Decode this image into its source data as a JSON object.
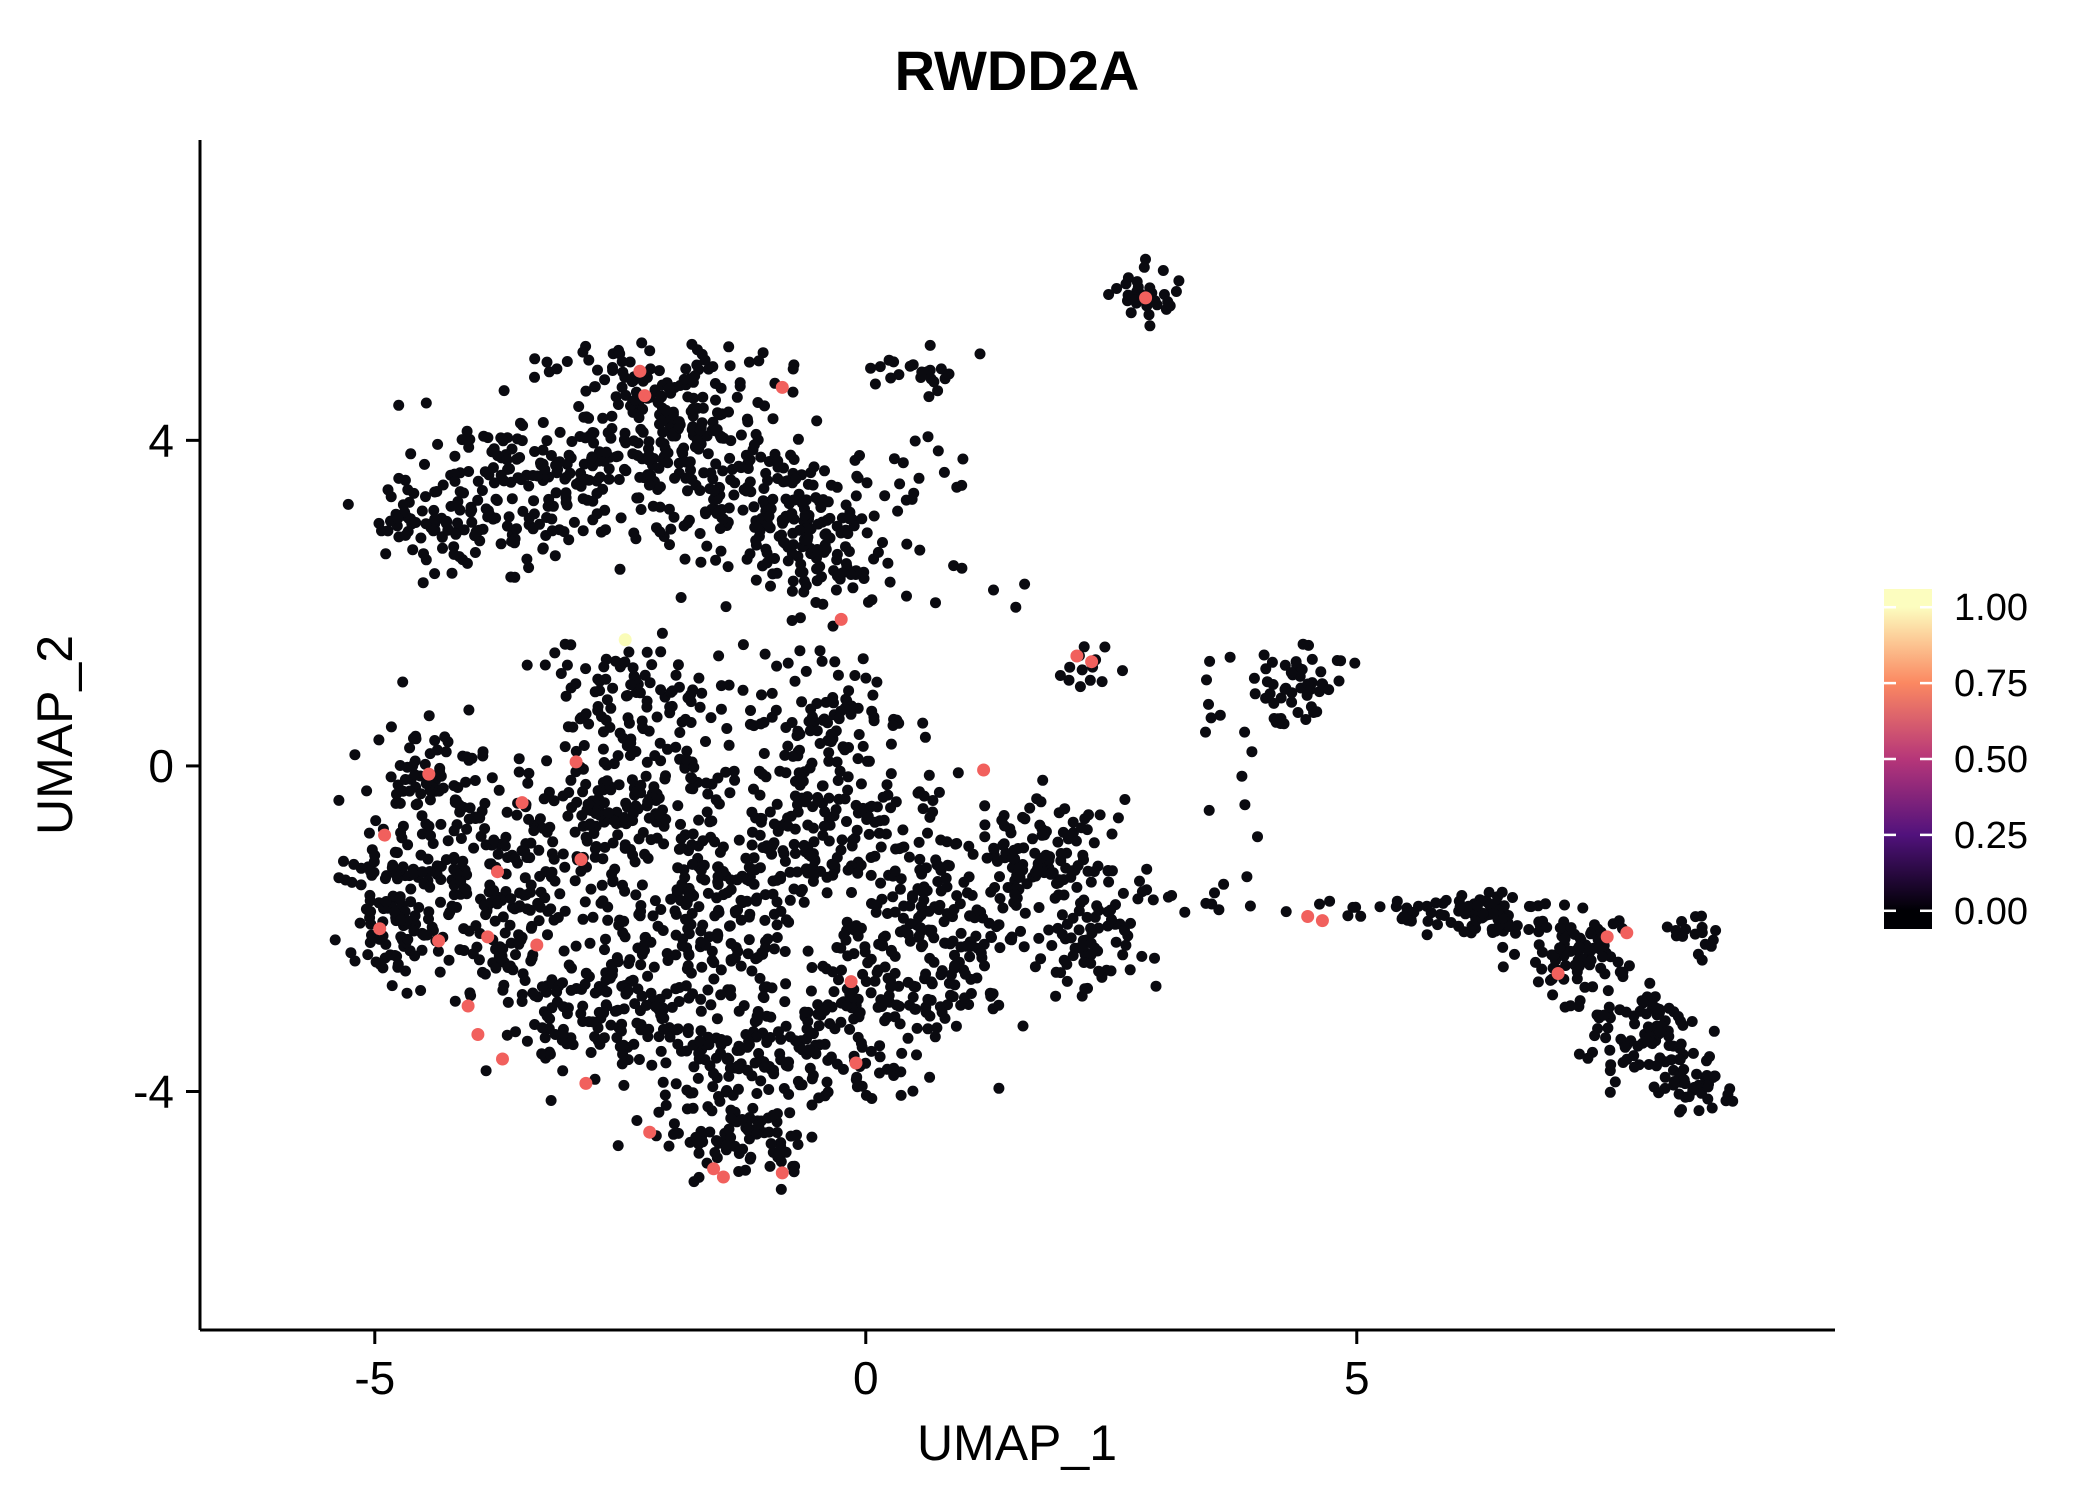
{
  "chart_data": {
    "type": "scatter",
    "title": "RWDD2A",
    "xlabel": "UMAP_1",
    "ylabel": "UMAP_2",
    "xlim": [
      -6.78,
      9.87
    ],
    "ylim": [
      -6.93,
      7.69
    ],
    "x_ticks": [
      -5,
      0,
      5
    ],
    "y_ticks": [
      -4,
      0,
      4
    ],
    "grid": false,
    "legend_position": "right",
    "point_color": "#0a0a10",
    "highlight_color": "#f1605d",
    "point_radius": 5.5,
    "highlight_radius": 6.5,
    "colorbar": {
      "tick_labels": [
        "1.00",
        "0.75",
        "0.50",
        "0.25",
        "0.00"
      ],
      "tick_values": [
        1.0,
        0.75,
        0.5,
        0.25,
        0.0
      ],
      "stops": [
        {
          "v": 0.0,
          "color": "#000004"
        },
        {
          "v": 0.25,
          "color": "#51127c"
        },
        {
          "v": 0.5,
          "color": "#b63679"
        },
        {
          "v": 0.75,
          "color": "#fb8861"
        },
        {
          "v": 1.0,
          "color": "#fcfdbf"
        }
      ]
    },
    "clusters": [
      {
        "cx": -3.4,
        "cy": 3.4,
        "rx": 1.25,
        "ry": 0.85,
        "n": 190,
        "seed": 1
      },
      {
        "cx": -2.0,
        "cy": 4.15,
        "rx": 1.0,
        "ry": 0.7,
        "n": 170,
        "seed": 2
      },
      {
        "cx": -1.2,
        "cy": 3.2,
        "rx": 0.95,
        "ry": 0.8,
        "n": 150,
        "seed": 3
      },
      {
        "cx": -0.35,
        "cy": 2.7,
        "rx": 0.6,
        "ry": 0.9,
        "n": 90,
        "seed": 4
      },
      {
        "cx": -4.35,
        "cy": 2.95,
        "rx": 0.7,
        "ry": 0.5,
        "n": 60,
        "seed": 5
      },
      {
        "cx": -2.2,
        "cy": 4.9,
        "rx": 1.0,
        "ry": 0.3,
        "n": 45,
        "seed": 6
      },
      {
        "cx": 0.5,
        "cy": 4.85,
        "rx": 0.55,
        "ry": 0.3,
        "n": 22,
        "seed": 7
      },
      {
        "cx": 0.6,
        "cy": 3.7,
        "rx": 0.5,
        "ry": 0.5,
        "n": 16,
        "seed": 8
      },
      {
        "cx": 1.2,
        "cy": 2.2,
        "rx": 0.4,
        "ry": 0.4,
        "n": 6,
        "seed": 9
      },
      {
        "cx": 2.85,
        "cy": 5.8,
        "rx": 0.3,
        "ry": 0.28,
        "n": 30,
        "seed": 10
      },
      {
        "cx": 2.25,
        "cy": 1.25,
        "rx": 0.33,
        "ry": 0.28,
        "n": 13,
        "seed": 11
      },
      {
        "cx": 4.4,
        "cy": 1.0,
        "rx": 0.52,
        "ry": 0.5,
        "n": 55,
        "seed": 12
      },
      {
        "cx": 3.5,
        "cy": 1.1,
        "rx": 0.35,
        "ry": 0.45,
        "n": 6,
        "seed": 13
      },
      {
        "cx": 3.9,
        "cy": -0.2,
        "rx": 0.5,
        "ry": 0.7,
        "n": 7,
        "seed": 14
      },
      {
        "cx": -3.9,
        "cy": -1.5,
        "rx": 1.2,
        "ry": 1.15,
        "n": 220,
        "seed": 15
      },
      {
        "cx": -2.5,
        "cy": -0.5,
        "rx": 1.1,
        "ry": 1.0,
        "n": 190,
        "seed": 16
      },
      {
        "cx": -1.5,
        "cy": -1.8,
        "rx": 1.2,
        "ry": 1.15,
        "n": 210,
        "seed": 17
      },
      {
        "cx": -0.3,
        "cy": -0.8,
        "rx": 1.0,
        "ry": 1.0,
        "n": 150,
        "seed": 18
      },
      {
        "cx": 0.8,
        "cy": -1.8,
        "rx": 1.0,
        "ry": 1.0,
        "n": 150,
        "seed": 19
      },
      {
        "cx": 1.8,
        "cy": -1.2,
        "rx": 0.8,
        "ry": 0.75,
        "n": 110,
        "seed": 20
      },
      {
        "cx": -1.0,
        "cy": -3.5,
        "rx": 1.3,
        "ry": 0.8,
        "n": 190,
        "seed": 21
      },
      {
        "cx": -2.8,
        "cy": -3.0,
        "rx": 0.9,
        "ry": 0.8,
        "n": 140,
        "seed": 22
      },
      {
        "cx": -1.3,
        "cy": -4.55,
        "rx": 0.85,
        "ry": 0.45,
        "n": 80,
        "seed": 23
      },
      {
        "cx": 0.3,
        "cy": -2.8,
        "rx": 0.85,
        "ry": 0.85,
        "n": 110,
        "seed": 24
      },
      {
        "cx": -0.4,
        "cy": 0.6,
        "rx": 0.8,
        "ry": 0.7,
        "n": 90,
        "seed": 25
      },
      {
        "cx": -2.2,
        "cy": 0.9,
        "rx": 0.9,
        "ry": 0.6,
        "n": 90,
        "seed": 26
      },
      {
        "cx": -4.45,
        "cy": -0.2,
        "rx": 0.6,
        "ry": 0.75,
        "n": 80,
        "seed": 27
      },
      {
        "cx": -4.85,
        "cy": -1.9,
        "rx": 0.45,
        "ry": 0.9,
        "n": 70,
        "seed": 28
      },
      {
        "cx": 2.3,
        "cy": -2.2,
        "rx": 0.6,
        "ry": 0.6,
        "n": 60,
        "seed": 29
      },
      {
        "cx": 3.3,
        "cy": -1.6,
        "rx": 0.7,
        "ry": 0.4,
        "n": 16,
        "seed": 30
      },
      {
        "cx": 4.8,
        "cy": -1.8,
        "rx": 0.45,
        "ry": 0.22,
        "n": 8,
        "seed": 31
      },
      {
        "cx": 5.6,
        "cy": -1.8,
        "rx": 0.28,
        "ry": 0.2,
        "n": 14,
        "seed": 32
      },
      {
        "cx": 6.3,
        "cy": -1.85,
        "rx": 0.55,
        "ry": 0.35,
        "n": 70,
        "seed": 33
      },
      {
        "cx": 7.2,
        "cy": -2.3,
        "rx": 0.6,
        "ry": 0.5,
        "n": 80,
        "seed": 34
      },
      {
        "cx": 7.9,
        "cy": -3.3,
        "rx": 0.55,
        "ry": 0.6,
        "n": 90,
        "seed": 35
      },
      {
        "cx": 8.5,
        "cy": -3.9,
        "rx": 0.4,
        "ry": 0.3,
        "n": 40,
        "seed": 36
      },
      {
        "cx": 8.45,
        "cy": -2.1,
        "rx": 0.3,
        "ry": 0.25,
        "n": 18,
        "seed": 37
      }
    ],
    "highlight_points": [
      {
        "x": -2.3,
        "y": 4.85,
        "v": 0.7,
        "color": "#f1605d"
      },
      {
        "x": -2.25,
        "y": 4.55,
        "v": 0.7,
        "color": "#f1605d"
      },
      {
        "x": -0.85,
        "y": 4.65,
        "v": 0.7,
        "color": "#f1605d"
      },
      {
        "x": 2.85,
        "y": 5.75,
        "v": 0.7,
        "color": "#f1605d"
      },
      {
        "x": -0.25,
        "y": 1.8,
        "v": 0.7,
        "color": "#f1605d"
      },
      {
        "x": 2.15,
        "y": 1.35,
        "v": 0.7,
        "color": "#f1605d"
      },
      {
        "x": 2.3,
        "y": 1.28,
        "v": 0.7,
        "color": "#f1605d"
      },
      {
        "x": -2.45,
        "y": 1.55,
        "v": 1.0,
        "color": "#fafcb8"
      },
      {
        "x": 1.2,
        "y": -0.05,
        "v": 0.7,
        "color": "#f1605d"
      },
      {
        "x": -2.95,
        "y": 0.05,
        "v": 0.7,
        "color": "#f1605d"
      },
      {
        "x": -4.45,
        "y": -0.1,
        "v": 0.7,
        "color": "#f1605d"
      },
      {
        "x": -3.5,
        "y": -0.45,
        "v": 0.7,
        "color": "#f1605d"
      },
      {
        "x": -4.9,
        "y": -0.85,
        "v": 0.7,
        "color": "#f1605d"
      },
      {
        "x": -2.9,
        "y": -1.15,
        "v": 0.7,
        "color": "#f1605d"
      },
      {
        "x": -3.75,
        "y": -1.3,
        "v": 0.7,
        "color": "#f1605d"
      },
      {
        "x": -4.95,
        "y": -2.0,
        "v": 0.7,
        "color": "#f1605d"
      },
      {
        "x": -4.35,
        "y": -2.15,
        "v": 0.7,
        "color": "#f1605d"
      },
      {
        "x": -3.85,
        "y": -2.1,
        "v": 0.7,
        "color": "#f1605d"
      },
      {
        "x": -3.35,
        "y": -2.2,
        "v": 0.7,
        "color": "#f1605d"
      },
      {
        "x": -4.05,
        "y": -2.95,
        "v": 0.7,
        "color": "#f1605d"
      },
      {
        "x": -3.95,
        "y": -3.3,
        "v": 0.7,
        "color": "#f1605d"
      },
      {
        "x": -3.7,
        "y": -3.6,
        "v": 0.7,
        "color": "#f1605d"
      },
      {
        "x": -2.85,
        "y": -3.9,
        "v": 0.7,
        "color": "#f1605d"
      },
      {
        "x": -2.2,
        "y": -4.5,
        "v": 0.7,
        "color": "#f1605d"
      },
      {
        "x": -1.55,
        "y": -4.95,
        "v": 0.7,
        "color": "#f1605d"
      },
      {
        "x": -1.45,
        "y": -5.05,
        "v": 0.7,
        "color": "#f1605d"
      },
      {
        "x": -0.85,
        "y": -5.0,
        "v": 0.7,
        "color": "#f1605d"
      },
      {
        "x": -0.15,
        "y": -2.65,
        "v": 0.7,
        "color": "#f1605d"
      },
      {
        "x": -0.1,
        "y": -3.65,
        "v": 0.7,
        "color": "#f1605d"
      },
      {
        "x": 4.5,
        "y": -1.85,
        "v": 0.7,
        "color": "#f1605d"
      },
      {
        "x": 4.65,
        "y": -1.9,
        "v": 0.7,
        "color": "#f1605d"
      },
      {
        "x": 7.55,
        "y": -2.1,
        "v": 0.7,
        "color": "#f1605d"
      },
      {
        "x": 7.75,
        "y": -2.05,
        "v": 0.7,
        "color": "#f1605d"
      },
      {
        "x": 7.05,
        "y": -2.55,
        "v": 0.7,
        "color": "#f1605d"
      }
    ]
  }
}
